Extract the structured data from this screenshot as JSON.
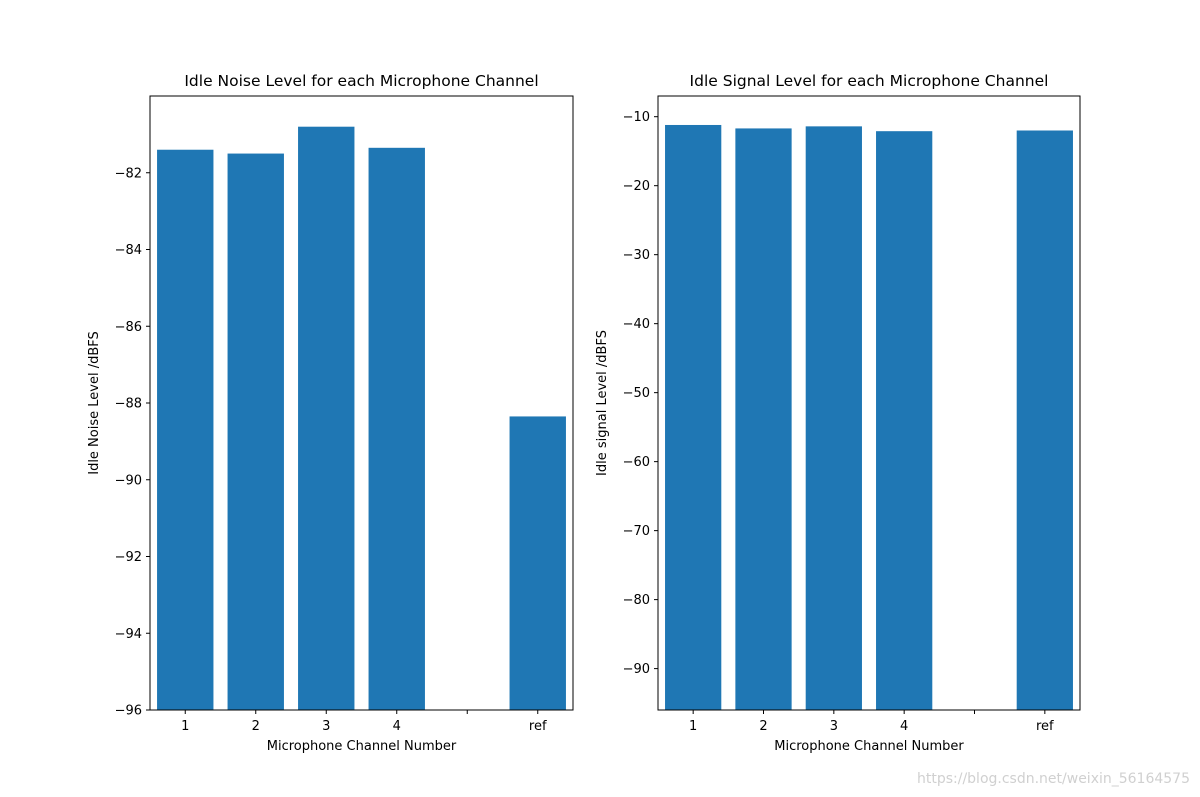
{
  "chart_data": [
    {
      "type": "bar",
      "title": "Idle Noise Level for each Microphone Channel",
      "xlabel": "Microphone Channel Number",
      "ylabel": "Idle Noise Level /dBFS",
      "categories": [
        "1",
        "2",
        "3",
        "4",
        "",
        "ref"
      ],
      "values": [
        -81.4,
        -81.5,
        -80.8,
        -81.35,
        null,
        -88.35
      ],
      "ylim": [
        -96,
        -80.0
      ],
      "yticks": [
        -82,
        -84,
        -86,
        -88,
        -90,
        -92,
        -94,
        -96
      ],
      "ytick_labels": [
        "−82",
        "−84",
        "−86",
        "−88",
        "−90",
        "−92",
        "−94",
        "−96"
      ],
      "bar_color": "#1f77b4",
      "grid": false
    },
    {
      "type": "bar",
      "title": "Idle Signal Level for each Microphone Channel",
      "xlabel": "Microphone Channel Number",
      "ylabel": "Idle signal Level /dBFS",
      "categories": [
        "1",
        "2",
        "3",
        "4",
        "",
        "ref"
      ],
      "values": [
        -11.2,
        -11.7,
        -11.4,
        -12.1,
        null,
        -12.0
      ],
      "ylim": [
        -96,
        -7
      ],
      "yticks": [
        -10,
        -20,
        -30,
        -40,
        -50,
        -60,
        -70,
        -80,
        -90
      ],
      "ytick_labels": [
        "−10",
        "−20",
        "−30",
        "−40",
        "−50",
        "−60",
        "−70",
        "−80",
        "−90"
      ],
      "bar_color": "#1f77b4",
      "grid": false
    }
  ],
  "watermark": "https://blog.csdn.net/weixin_56164575"
}
